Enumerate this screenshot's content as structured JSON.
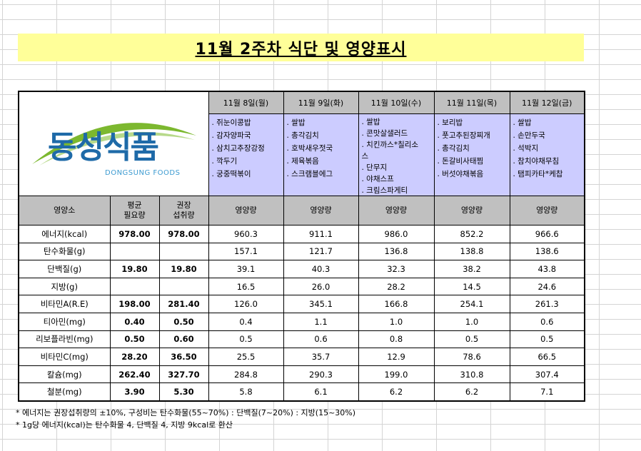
{
  "title": "11월 2주차 식단 및 영양표시",
  "logo": {
    "korean": "동성식품",
    "english": "DONGSUNG FOODS"
  },
  "days": [
    {
      "date": "11월 8일(월)",
      "menu": [
        ". 쥐눈이콩밥",
        ". 감자양파국",
        ". 삼치고추장강정",
        ". 깍두기",
        ". 궁중떡볶이"
      ]
    },
    {
      "date": "11월 9일(화)",
      "menu": [
        ". 쌀밥",
        ". 총각김치",
        ". 호박새우젓국",
        ". 제육볶음",
        ". 스크램블에그"
      ]
    },
    {
      "date": "11월 10일(수)",
      "menu": [
        ". 쌀밥",
        ". 콘맛살샐러드",
        ". 치킨까스*칠리소",
        "스",
        ". 단무지",
        ". 야채스프",
        ". 크림스파게티"
      ]
    },
    {
      "date": "11월 11일(목)",
      "menu": [
        ". 보리밥",
        ". 풋고추된장찌개",
        ". 총각김치",
        ". 돈갈비사태찜",
        ". 버섯야채볶음"
      ]
    },
    {
      "date": "11월 12일(금)",
      "menu": [
        ". 쌀밥",
        ". 손만두국",
        ". 석박지",
        ". 참치야채무침",
        ". 탬피카타*케찹"
      ]
    }
  ],
  "nutrient_header": {
    "nutrient": "영양소",
    "avg": [
      "평균",
      "필요량"
    ],
    "rec": [
      "권장",
      "섭취량"
    ],
    "amount": "영양량"
  },
  "nutrients": [
    {
      "name": "에너지(kcal)",
      "avg": "978.00",
      "rec": "978.00",
      "values": [
        "960.3",
        "911.1",
        "986.0",
        "852.2",
        "966.6"
      ]
    },
    {
      "name": "탄수화물(g)",
      "avg": "",
      "rec": "",
      "values": [
        "157.1",
        "121.7",
        "136.8",
        "138.8",
        "138.6"
      ]
    },
    {
      "name": "단백질(g)",
      "avg": "19.80",
      "rec": "19.80",
      "values": [
        "39.1",
        "40.3",
        "32.3",
        "38.2",
        "43.8"
      ]
    },
    {
      "name": "지방(g)",
      "avg": "",
      "rec": "",
      "values": [
        "16.5",
        "26.0",
        "28.2",
        "14.5",
        "24.6"
      ]
    },
    {
      "name": "비타민A(R.E)",
      "avg": "198.00",
      "rec": "281.40",
      "values": [
        "126.0",
        "345.1",
        "166.8",
        "254.1",
        "261.3"
      ]
    },
    {
      "name": "티아민(mg)",
      "avg": "0.40",
      "rec": "0.50",
      "values": [
        "0.4",
        "1.1",
        "1.0",
        "1.0",
        "0.6"
      ]
    },
    {
      "name": "리보플라빈(mg)",
      "avg": "0.50",
      "rec": "0.60",
      "values": [
        "0.5",
        "0.6",
        "0.8",
        "0.5",
        "0.5"
      ]
    },
    {
      "name": "비타민C(mg)",
      "avg": "28.20",
      "rec": "36.50",
      "values": [
        "25.5",
        "35.7",
        "12.9",
        "78.6",
        "66.5"
      ]
    },
    {
      "name": "칼슘(mg)",
      "avg": "262.40",
      "rec": "327.70",
      "values": [
        "284.8",
        "290.3",
        "199.0",
        "310.8",
        "307.4"
      ]
    },
    {
      "name": "철분(mg)",
      "avg": "3.90",
      "rec": "5.30",
      "values": [
        "5.8",
        "6.1",
        "6.2",
        "6.2",
        "7.1"
      ]
    }
  ],
  "notes": [
    "* 에너지는 권장섭취량의 ±10%, 구성비는 탄수화물(55~70%) : 단백질(7~20%) : 지방(15~30%)",
    "* 1g당 에너지(kcal)는 탄수화물 4, 단백질 4, 지방 9kcal로 환산"
  ],
  "colors": {
    "title_bg": "#ffff99",
    "header_bg": "#c0c0c0",
    "menu_bg": "#ccccff",
    "logo_blue": "#1e6aa8",
    "logo_green": "#7cb82f"
  }
}
